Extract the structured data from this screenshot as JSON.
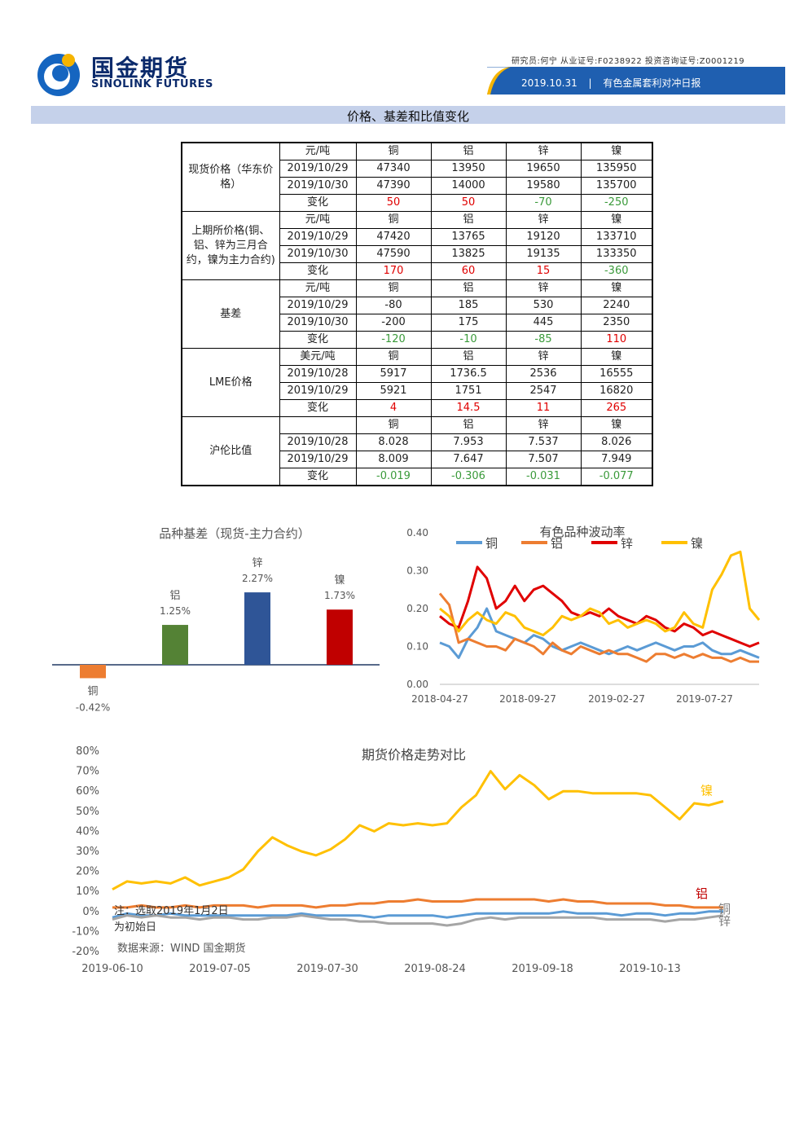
{
  "header": {
    "logo_cn": "国金期货",
    "logo_en": "SINOLINK FUTURES",
    "analyst_line": "研究员:何宁  从业证号:F0238922  投资咨询证号:Z0001219",
    "date": "2019.10.31",
    "report_name": "有色金属套利对冲日报"
  },
  "section_title": "价格、基差和比值变化",
  "table": {
    "groups": [
      {
        "label": "现货价格（华东价格）",
        "unit": "元/吨",
        "rows": [
          [
            "2019/10/29",
            "47340",
            "13950",
            "19650",
            "135950"
          ],
          [
            "2019/10/30",
            "47390",
            "14000",
            "19580",
            "135700"
          ]
        ],
        "change": [
          "50",
          "50",
          "-70",
          "-250"
        ]
      },
      {
        "label": "上期所价格(铜、铝、锌为三月合约，镍为主力合约)",
        "unit": "元/吨",
        "rows": [
          [
            "2019/10/29",
            "47420",
            "13765",
            "19120",
            "133710"
          ],
          [
            "2019/10/30",
            "47590",
            "13825",
            "19135",
            "133350"
          ]
        ],
        "change": [
          "170",
          "60",
          "15",
          "-360"
        ]
      },
      {
        "label": "基差",
        "unit": "元/吨",
        "rows": [
          [
            "2019/10/29",
            "-80",
            "185",
            "530",
            "2240"
          ],
          [
            "2019/10/30",
            "-200",
            "175",
            "445",
            "2350"
          ]
        ],
        "change": [
          "-120",
          "-10",
          "-85",
          "110"
        ]
      },
      {
        "label": "LME价格",
        "unit": "美元/吨",
        "rows": [
          [
            "2019/10/28",
            "5917",
            "1736.5",
            "2536",
            "16555"
          ],
          [
            "2019/10/29",
            "5921",
            "1751",
            "2547",
            "16820"
          ]
        ],
        "change": [
          "4",
          "14.5",
          "11",
          "265"
        ]
      },
      {
        "label": "沪伦比值",
        "unit": "",
        "rows": [
          [
            "2019/10/28",
            "8.028",
            "7.953",
            "7.537",
            "8.026"
          ],
          [
            "2019/10/29",
            "8.009",
            "7.647",
            "7.507",
            "7.949"
          ]
        ],
        "change": [
          "-0.019",
          "-0.306",
          "-0.031",
          "-0.077"
        ]
      }
    ],
    "metals": [
      "铜",
      "铝",
      "锌",
      "镍"
    ],
    "change_label": "变化"
  },
  "chart_data": [
    {
      "type": "bar",
      "title": "品种基差（现货-主力合约）",
      "categories": [
        "铜",
        "铝",
        "锌",
        "镍"
      ],
      "values": [
        -0.42,
        1.25,
        2.27,
        1.73
      ],
      "value_labels": [
        "-0.42%",
        "1.25%",
        "2.27%",
        "1.73%"
      ],
      "colors": [
        "#ed7d31",
        "#548235",
        "#2f5597",
        "#c00000"
      ]
    },
    {
      "type": "line",
      "title": "有色品种波动率",
      "x_ticks": [
        "2018-04-27",
        "2018-09-27",
        "2019-02-27",
        "2019-07-27"
      ],
      "y_ticks": [
        "0.40",
        "0.30",
        "0.20",
        "0.10",
        "0.00"
      ],
      "ylim": [
        0,
        0.4
      ],
      "series": [
        {
          "name": "铜",
          "color": "#5b9bd5",
          "values": [
            0.11,
            0.1,
            0.07,
            0.12,
            0.15,
            0.2,
            0.14,
            0.13,
            0.12,
            0.11,
            0.13,
            0.12,
            0.1,
            0.09,
            0.1,
            0.11,
            0.1,
            0.09,
            0.08,
            0.09,
            0.1,
            0.09,
            0.1,
            0.11,
            0.1,
            0.09,
            0.1,
            0.1,
            0.11,
            0.09,
            0.08,
            0.08,
            0.09,
            0.08,
            0.07
          ]
        },
        {
          "name": "铝",
          "color": "#ed7d31",
          "values": [
            0.24,
            0.21,
            0.11,
            0.12,
            0.11,
            0.1,
            0.1,
            0.09,
            0.12,
            0.11,
            0.1,
            0.08,
            0.11,
            0.09,
            0.08,
            0.1,
            0.09,
            0.08,
            0.09,
            0.08,
            0.08,
            0.07,
            0.06,
            0.08,
            0.08,
            0.07,
            0.08,
            0.07,
            0.08,
            0.07,
            0.07,
            0.06,
            0.07,
            0.06,
            0.06
          ]
        },
        {
          "name": "锌",
          "color": "#e00000",
          "values": [
            0.18,
            0.16,
            0.15,
            0.22,
            0.31,
            0.28,
            0.2,
            0.22,
            0.26,
            0.22,
            0.25,
            0.26,
            0.24,
            0.22,
            0.19,
            0.18,
            0.19,
            0.18,
            0.2,
            0.18,
            0.17,
            0.16,
            0.18,
            0.17,
            0.15,
            0.14,
            0.16,
            0.15,
            0.13,
            0.14,
            0.13,
            0.12,
            0.11,
            0.1,
            0.11
          ]
        },
        {
          "name": "镍",
          "color": "#ffc000",
          "values": [
            0.2,
            0.18,
            0.14,
            0.17,
            0.19,
            0.17,
            0.16,
            0.19,
            0.18,
            0.15,
            0.14,
            0.13,
            0.15,
            0.18,
            0.17,
            0.18,
            0.2,
            0.19,
            0.16,
            0.17,
            0.15,
            0.16,
            0.17,
            0.16,
            0.14,
            0.15,
            0.19,
            0.16,
            0.15,
            0.25,
            0.29,
            0.34,
            0.35,
            0.2,
            0.17
          ]
        }
      ]
    },
    {
      "type": "line",
      "title": "期货价格走势对比",
      "x_ticks": [
        "2019-06-10",
        "2019-07-05",
        "2019-07-30",
        "2019-08-24",
        "2019-09-18",
        "2019-10-13"
      ],
      "y_ticks": [
        "80%",
        "70%",
        "60%",
        "50%",
        "40%",
        "30%",
        "20%",
        "10%",
        "0%",
        "-10%",
        "-20%"
      ],
      "ylim": [
        -20,
        80
      ],
      "note": "注：选取2019年1月2日为初始日",
      "source": "数据来源：WIND 国金期货",
      "series": [
        {
          "name": "镍",
          "color": "#ffc000",
          "values": [
            11,
            15,
            14,
            15,
            14,
            17,
            13,
            15,
            17,
            21,
            30,
            37,
            33,
            30,
            28,
            31,
            36,
            43,
            40,
            44,
            43,
            44,
            43,
            44,
            52,
            58,
            70,
            61,
            68,
            63,
            56,
            60,
            60,
            59,
            59,
            59,
            59,
            58,
            52,
            46,
            54,
            53,
            55
          ]
        },
        {
          "name": "铝",
          "color": "#ed7d31",
          "values": [
            2,
            2,
            3,
            2,
            2,
            3,
            2,
            3,
            3,
            3,
            2,
            3,
            3,
            3,
            2,
            3,
            3,
            4,
            4,
            5,
            5,
            6,
            5,
            5,
            5,
            6,
            6,
            6,
            6,
            6,
            5,
            6,
            5,
            5,
            4,
            4,
            4,
            4,
            3,
            3,
            2,
            2,
            2
          ]
        },
        {
          "name": "铜",
          "color": "#5b9bd5",
          "values": [
            -3,
            -1,
            -2,
            -2,
            -1,
            -2,
            -2,
            -2,
            -2,
            -2,
            -2,
            -2,
            -2,
            -1,
            -2,
            -2,
            -2,
            -2,
            -3,
            -2,
            -2,
            -2,
            -2,
            -3,
            -2,
            -1,
            -1,
            -1,
            -1,
            -1,
            -1,
            0,
            -1,
            -1,
            -1,
            -2,
            -1,
            -1,
            -2,
            -1,
            -1,
            0,
            0
          ]
        },
        {
          "name": "锌",
          "color": "#a5a5a5",
          "values": [
            -4,
            -2,
            -3,
            -2,
            -3,
            -3,
            -4,
            -3,
            -3,
            -4,
            -4,
            -3,
            -3,
            -2,
            -3,
            -4,
            -4,
            -5,
            -5,
            -6,
            -6,
            -6,
            -6,
            -7,
            -6,
            -4,
            -3,
            -4,
            -3,
            -3,
            -3,
            -3,
            -3,
            -3,
            -4,
            -4,
            -4,
            -4,
            -5,
            -4,
            -4,
            -3,
            -2
          ]
        }
      ]
    }
  ]
}
